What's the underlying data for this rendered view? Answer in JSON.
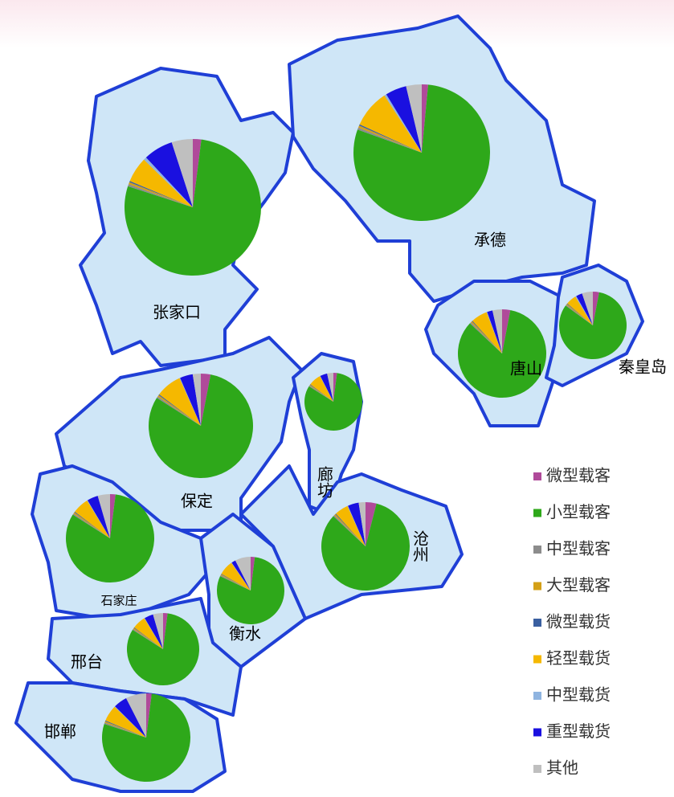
{
  "cities": [
    {
      "name": "张家口",
      "values": [
        2,
        78,
        0.5,
        0.5,
        0.3,
        6,
        0.7,
        7,
        5
      ]
    },
    {
      "name": "承德",
      "values": [
        1.5,
        79,
        0.5,
        0.5,
        0.3,
        9,
        0.5,
        5,
        3.7
      ]
    },
    {
      "name": "唐山",
      "values": [
        3,
        84,
        0.5,
        0.5,
        0.3,
        6,
        0.2,
        2,
        3.5
      ]
    },
    {
      "name": "秦皇岛",
      "values": [
        3,
        82,
        0.5,
        0.5,
        0.3,
        5,
        0.5,
        3,
        5.2
      ]
    },
    {
      "name": "保定",
      "values": [
        3,
        81,
        0.5,
        0.5,
        0.3,
        8,
        0.2,
        4,
        2.5
      ]
    },
    {
      "name": "廊坊",
      "values": [
        2,
        82,
        0.5,
        0.5,
        0.3,
        7,
        0.2,
        4,
        3.5
      ]
    },
    {
      "name": "沧州",
      "values": [
        4,
        83,
        0.5,
        0.5,
        0.3,
        5,
        0.2,
        4,
        2.5
      ]
    },
    {
      "name": "石家庄",
      "values": [
        2,
        82,
        0.5,
        0.5,
        0.3,
        6,
        0.2,
        4,
        4.5
      ]
    },
    {
      "name": "衡水",
      "values": [
        2,
        80,
        0.5,
        0.5,
        0.3,
        7,
        0.2,
        2,
        7.5
      ]
    },
    {
      "name": "邢台",
      "values": [
        2,
        82,
        0.5,
        0.5,
        0.3,
        6,
        0.2,
        4,
        4.5
      ]
    },
    {
      "name": "邯郸",
      "values": [
        2,
        78,
        0.5,
        0.5,
        0.3,
        6,
        0.2,
        5,
        7.5
      ]
    }
  ],
  "legend": [
    {
      "label": "微型载客",
      "color": "#b04a9a"
    },
    {
      "label": "小型载客",
      "color": "#2ea81a"
    },
    {
      "label": "中型载客",
      "color": "#8c8c8c"
    },
    {
      "label": "大型载客",
      "color": "#d4a017"
    },
    {
      "label": "微型载货",
      "color": "#3a5fa0"
    },
    {
      "label": "轻型载货",
      "color": "#f5b800"
    },
    {
      "label": "中型载货",
      "color": "#8fb4e0"
    },
    {
      "label": "重型载货",
      "color": "#1a10e0"
    },
    {
      "label": "其他",
      "color": "#bfbfbf"
    }
  ]
}
